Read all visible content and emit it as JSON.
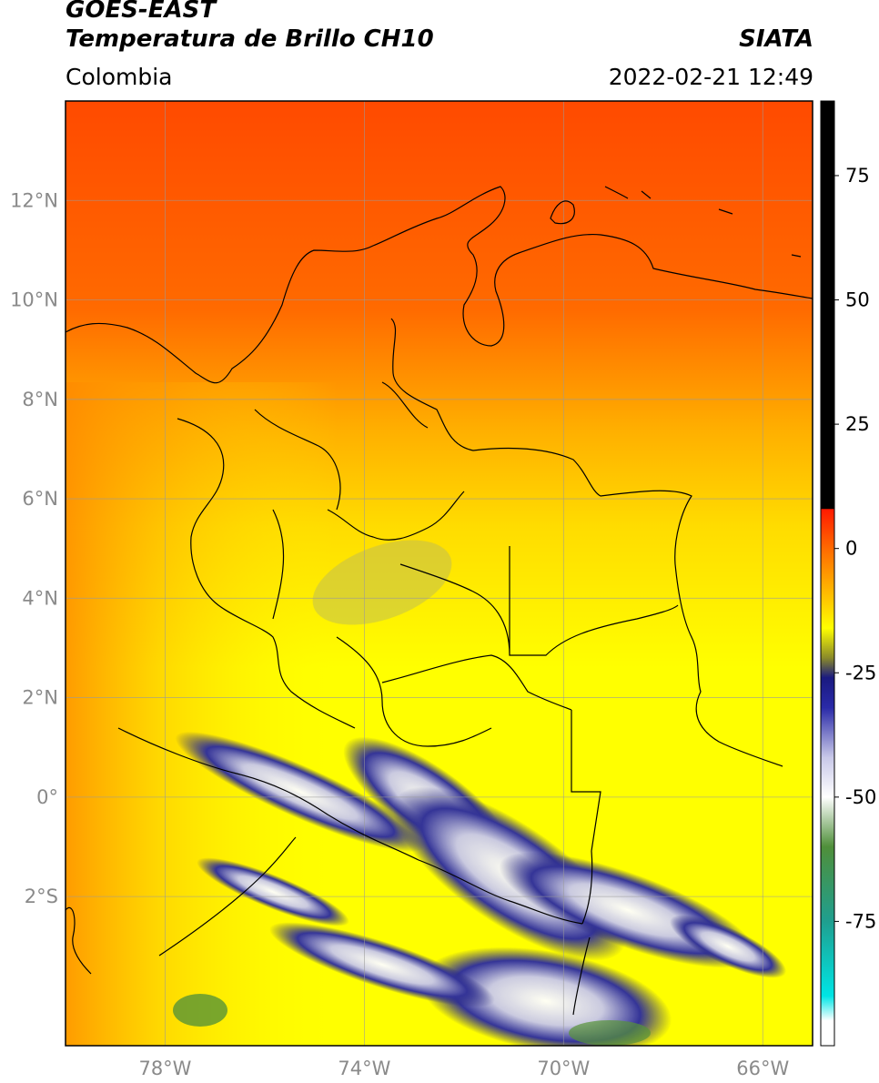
{
  "header": {
    "satellite": "GOES-EAST",
    "product": "Temperatura de Brillo CH10",
    "organization": "SIATA",
    "region": "Colombia",
    "datetime": "2022-02-21 12:49"
  },
  "map": {
    "lon_range": [
      -80,
      -65
    ],
    "lat_range": [
      -5,
      14
    ],
    "lon_ticks": [
      {
        "value": -78,
        "label": "78°W"
      },
      {
        "value": -74,
        "label": "74°W"
      },
      {
        "value": -70,
        "label": "70°W"
      },
      {
        "value": -66,
        "label": "66°W"
      }
    ],
    "lat_ticks": [
      {
        "value": 12,
        "label": "12°N"
      },
      {
        "value": 10,
        "label": "10°N"
      },
      {
        "value": 8,
        "label": "8°N"
      },
      {
        "value": 6,
        "label": "6°N"
      },
      {
        "value": 4,
        "label": "4°N"
      },
      {
        "value": 2,
        "label": "2°N"
      },
      {
        "value": 0,
        "label": "0°"
      },
      {
        "value": -2,
        "label": "2°S"
      }
    ],
    "grid": true,
    "colors": {
      "warm": "#ff5a00",
      "mid": "#ffa500",
      "cool": "#ffff00",
      "cloud_dark": "#1a237e",
      "cloud_light": "#ffffff",
      "cloud_green": "#4f8f3a",
      "border": "#000000",
      "grid": "#9a9a9a"
    }
  },
  "colorbar": {
    "range": [
      -100,
      90
    ],
    "ticks": [
      {
        "value": 75,
        "label": "75"
      },
      {
        "value": 50,
        "label": "50"
      },
      {
        "value": 25,
        "label": "25"
      },
      {
        "value": 0,
        "label": "0"
      },
      {
        "value": -25,
        "label": "-25"
      },
      {
        "value": -50,
        "label": "-50"
      },
      {
        "value": -75,
        "label": "-75"
      }
    ],
    "stops": [
      {
        "value": 90,
        "color": "#000000"
      },
      {
        "value": 8,
        "color": "#000000"
      },
      {
        "value": 7.9,
        "color": "#ff1a00"
      },
      {
        "value": 0,
        "color": "#ff6a00"
      },
      {
        "value": -10,
        "color": "#ffc400"
      },
      {
        "value": -16,
        "color": "#ffff00"
      },
      {
        "value": -22,
        "color": "#8a8a2a"
      },
      {
        "value": -26,
        "color": "#1a1a80"
      },
      {
        "value": -32,
        "color": "#2a2aa8"
      },
      {
        "value": -42,
        "color": "#c8c8e8"
      },
      {
        "value": -50,
        "color": "#ffffff"
      },
      {
        "value": -60,
        "color": "#4f8f3a"
      },
      {
        "value": -75,
        "color": "#1f9f8f"
      },
      {
        "value": -90,
        "color": "#00e5e5"
      },
      {
        "value": -95,
        "color": "#ffffff"
      },
      {
        "value": -100,
        "color": "#ffffff"
      }
    ]
  }
}
